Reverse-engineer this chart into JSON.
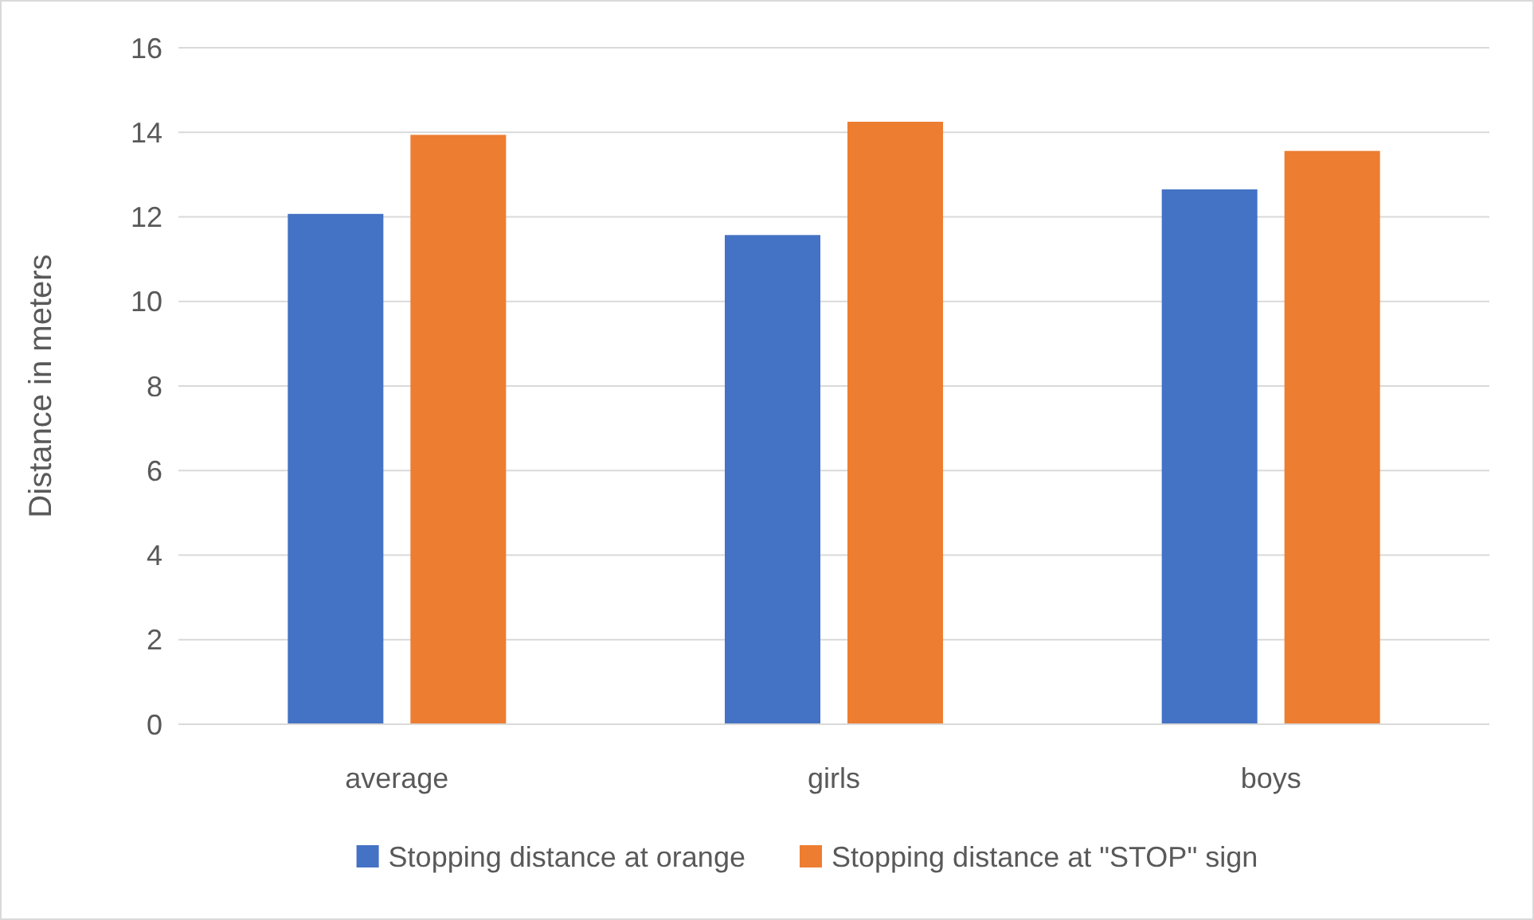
{
  "chart_data": {
    "type": "bar",
    "ylabel": "Distance in meters",
    "categories": [
      "average",
      "girls",
      "boys"
    ],
    "series": [
      {
        "name": "Stopping distance at orange",
        "color": "#4472c4",
        "values": [
          12.07,
          11.57,
          12.65
        ]
      },
      {
        "name": "Stopping distance at \"STOP\" sign",
        "color": "#ed7d31",
        "values": [
          13.94,
          14.25,
          13.56
        ]
      }
    ],
    "ylim": [
      0,
      16
    ],
    "yticks": [
      0,
      2,
      4,
      6,
      8,
      10,
      12,
      14,
      16
    ],
    "grid": "y",
    "legend": "bottom"
  }
}
